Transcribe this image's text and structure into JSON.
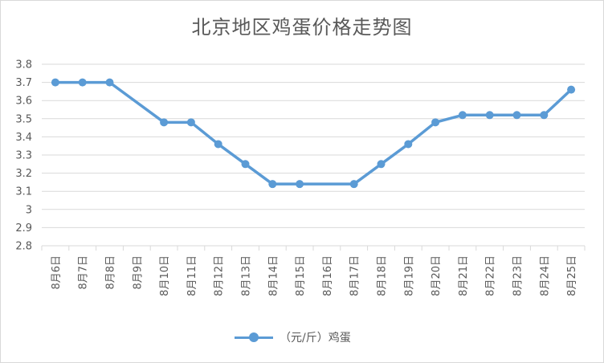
{
  "chart_data": {
    "type": "line",
    "title": "北京地区鸡蛋价格走势图",
    "categories": [
      "8月6日",
      "8月7日",
      "8月8日",
      "8月9日",
      "8月10日",
      "8月11日",
      "8月12日",
      "8月13日",
      "8月14日",
      "8月15日",
      "8月16日",
      "8月17日",
      "8月18日",
      "8月19日",
      "8月20日",
      "8月21日",
      "8月22日",
      "8月23日",
      "8月24日",
      "8月25日"
    ],
    "series": [
      {
        "name": "（元/斤）鸡蛋",
        "color": "#5b9bd5",
        "values": [
          3.7,
          3.7,
          3.7,
          null,
          3.48,
          3.48,
          3.36,
          3.25,
          3.14,
          3.14,
          null,
          3.14,
          3.25,
          3.36,
          3.48,
          3.52,
          3.52,
          3.52,
          3.52,
          3.66
        ]
      }
    ],
    "yticks": [
      "2.8",
      "2.9",
      "3",
      "3.1",
      "3.2",
      "3.3",
      "3.4",
      "3.5",
      "3.6",
      "3.7",
      "3.8"
    ],
    "ylim": [
      2.8,
      3.8
    ],
    "grid": true,
    "legend_position": "bottom"
  }
}
